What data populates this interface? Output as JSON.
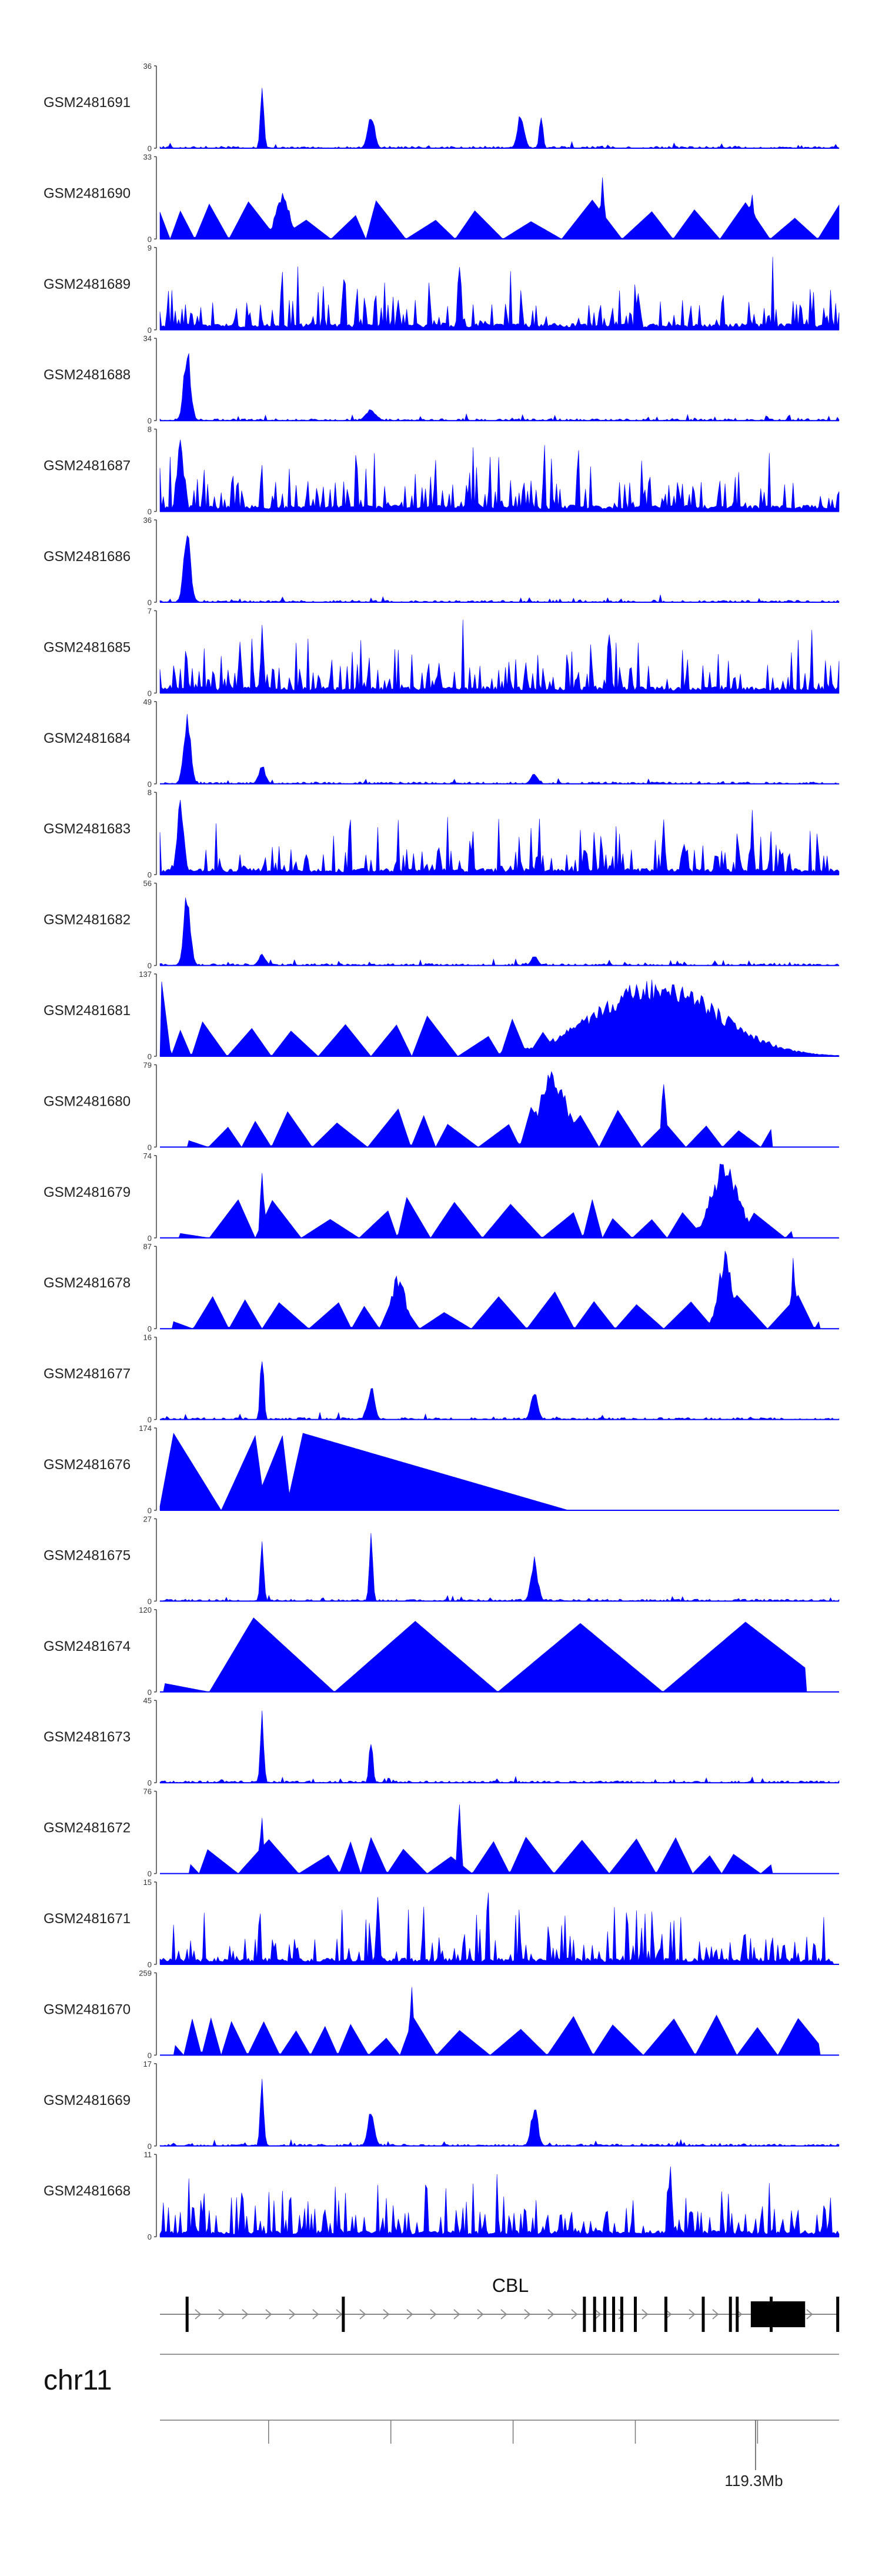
{
  "chart_data": {
    "type": "area",
    "title": "",
    "chromosome": "chr11",
    "gene": "CBL",
    "track_color": "#0000ff",
    "axis_color": "#444444",
    "coordinate_label": "119.3Mb",
    "gene_model": {
      "strand": "+",
      "exon_positions": [
        0.04,
        0.27,
        0.625,
        0.64,
        0.655,
        0.668,
        0.68,
        0.7,
        0.745,
        0.8,
        0.84,
        0.85,
        0.9,
        0.998
      ],
      "thick_block": [
        0.87,
        0.95
      ]
    },
    "tracks": [
      {
        "name": "GSM2481691",
        "ymin": "0",
        "ymax": "36",
        "style": "sparse",
        "seed": 91,
        "cov": 1.0,
        "peaks": [
          [
            0.15,
            0.95,
            0.004
          ],
          [
            0.31,
            0.45,
            0.005
          ],
          [
            0.53,
            0.45,
            0.005
          ],
          [
            0.56,
            0.45,
            0.004
          ]
        ]
      },
      {
        "name": "GSM2481690",
        "ymin": "0",
        "ymax": "33",
        "style": "triangles",
        "seed": 90,
        "cov": 1.0,
        "peaks": [
          [
            0.18,
            0.6,
            0.01
          ],
          [
            0.65,
            0.95,
            0.004
          ],
          [
            0.87,
            0.75,
            0.004
          ]
        ]
      },
      {
        "name": "GSM2481689",
        "ymin": "0",
        "ymax": "9",
        "style": "dense",
        "seed": 89,
        "cov": 1.0,
        "peaks": [
          [
            0.44,
            0.95,
            0.003
          ]
        ]
      },
      {
        "name": "GSM2481688",
        "ymin": "0",
        "ymax": "34",
        "style": "sparse",
        "seed": 88,
        "cov": 1.0,
        "peaks": [
          [
            0.04,
            0.95,
            0.006
          ],
          [
            0.31,
            0.15,
            0.008
          ]
        ]
      },
      {
        "name": "GSM2481687",
        "ymin": "0",
        "ymax": "8",
        "style": "dense",
        "seed": 87,
        "cov": 1.0,
        "peaks": [
          [
            0.03,
            0.95,
            0.005
          ]
        ]
      },
      {
        "name": "GSM2481686",
        "ymin": "0",
        "ymax": "36",
        "style": "sparse",
        "seed": 86,
        "cov": 1.0,
        "peaks": [
          [
            0.04,
            0.95,
            0.006
          ]
        ]
      },
      {
        "name": "GSM2481685",
        "ymin": "0",
        "ymax": "7",
        "style": "dense",
        "seed": 85,
        "cov": 1.0,
        "peaks": [
          [
            0.15,
            0.85,
            0.003
          ],
          [
            0.66,
            0.95,
            0.003
          ]
        ]
      },
      {
        "name": "GSM2481684",
        "ymin": "0",
        "ymax": "49",
        "style": "sparse",
        "seed": 84,
        "cov": 1.0,
        "peaks": [
          [
            0.04,
            0.95,
            0.006
          ],
          [
            0.15,
            0.25,
            0.006
          ],
          [
            0.55,
            0.15,
            0.006
          ]
        ]
      },
      {
        "name": "GSM2481683",
        "ymin": "0",
        "ymax": "8",
        "style": "dense",
        "seed": 83,
        "cov": 1.0,
        "peaks": [
          [
            0.03,
            0.95,
            0.005
          ]
        ]
      },
      {
        "name": "GSM2481682",
        "ymin": "0",
        "ymax": "56",
        "style": "sparse",
        "seed": 82,
        "cov": 1.0,
        "peaks": [
          [
            0.04,
            0.95,
            0.006
          ],
          [
            0.15,
            0.15,
            0.006
          ],
          [
            0.55,
            0.12,
            0.006
          ]
        ]
      },
      {
        "name": "GSM2481681",
        "ymin": "0",
        "ymax": "137",
        "style": "triangles",
        "seed": 81,
        "cov": 0.86,
        "peaks": [
          [
            0.73,
            0.98,
            0.09
          ]
        ]
      },
      {
        "name": "GSM2481680",
        "ymin": "0",
        "ymax": "79",
        "style": "triangles",
        "seed": 80,
        "cov": 0.9,
        "peaks": [
          [
            0.58,
            0.98,
            0.02
          ],
          [
            0.74,
            0.97,
            0.004
          ]
        ]
      },
      {
        "name": "GSM2481679",
        "ymin": "0",
        "ymax": "74",
        "style": "triangles",
        "seed": 79,
        "cov": 0.93,
        "peaks": [
          [
            0.15,
            0.85,
            0.004
          ],
          [
            0.83,
            0.98,
            0.02
          ]
        ]
      },
      {
        "name": "GSM2481678",
        "ymin": "0",
        "ymax": "87",
        "style": "triangles",
        "seed": 78,
        "cov": 0.97,
        "peaks": [
          [
            0.35,
            0.7,
            0.01
          ],
          [
            0.83,
            0.98,
            0.01
          ],
          [
            0.93,
            0.95,
            0.004
          ]
        ]
      },
      {
        "name": "GSM2481677",
        "ymin": "0",
        "ymax": "16",
        "style": "sparse",
        "seed": 77,
        "cov": 1.0,
        "peaks": [
          [
            0.15,
            0.95,
            0.004
          ],
          [
            0.31,
            0.45,
            0.005
          ],
          [
            0.55,
            0.35,
            0.005
          ]
        ]
      },
      {
        "name": "GSM2481676",
        "ymin": "0",
        "ymax": "174",
        "style": "slope",
        "seed": 76,
        "cov": 0.6,
        "peaks": []
      },
      {
        "name": "GSM2481675",
        "ymin": "0",
        "ymax": "27",
        "style": "sparse",
        "seed": 75,
        "cov": 1.0,
        "peaks": [
          [
            0.15,
            0.85,
            0.004
          ],
          [
            0.31,
            0.95,
            0.004
          ],
          [
            0.55,
            0.55,
            0.005
          ]
        ]
      },
      {
        "name": "GSM2481674",
        "ymin": "0",
        "ymax": "120",
        "style": "bigtriangles",
        "seed": 74,
        "cov": 0.95,
        "peaks": []
      },
      {
        "name": "GSM2481673",
        "ymin": "0",
        "ymax": "45",
        "style": "sparse",
        "seed": 73,
        "cov": 1.0,
        "peaks": [
          [
            0.15,
            0.95,
            0.004
          ],
          [
            0.31,
            0.65,
            0.004
          ]
        ]
      },
      {
        "name": "GSM2481672",
        "ymin": "0",
        "ymax": "76",
        "style": "triangles",
        "seed": 72,
        "cov": 0.9,
        "peaks": [
          [
            0.44,
            0.95,
            0.004
          ],
          [
            0.15,
            0.8,
            0.004
          ]
        ]
      },
      {
        "name": "GSM2481671",
        "ymin": "0",
        "ymax": "15",
        "style": "dense",
        "seed": 71,
        "cov": 0.99,
        "peaks": [
          [
            0.32,
            0.95,
            0.003
          ]
        ]
      },
      {
        "name": "GSM2481670",
        "ymin": "0",
        "ymax": "259",
        "style": "triangles",
        "seed": 70,
        "cov": 0.97,
        "peaks": [
          [
            0.37,
            0.98,
            0.004
          ]
        ]
      },
      {
        "name": "GSM2481669",
        "ymin": "0",
        "ymax": "17",
        "style": "sparse",
        "seed": 69,
        "cov": 1.0,
        "peaks": [
          [
            0.15,
            0.95,
            0.004
          ],
          [
            0.31,
            0.45,
            0.005
          ],
          [
            0.55,
            0.55,
            0.005
          ]
        ]
      },
      {
        "name": "GSM2481668",
        "ymin": "0",
        "ymax": "11",
        "style": "dense",
        "seed": 68,
        "cov": 1.0,
        "peaks": [
          [
            0.75,
            0.95,
            0.003
          ]
        ]
      }
    ]
  }
}
